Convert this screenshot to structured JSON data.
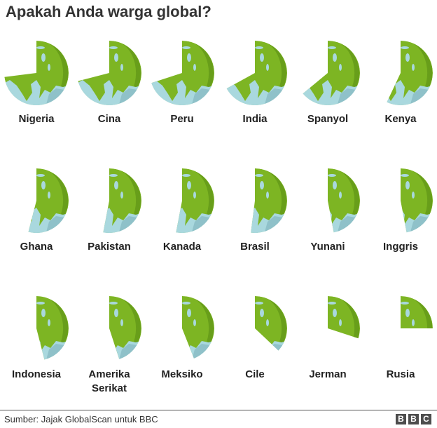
{
  "title": "Apakah Anda warga global?",
  "chart_data": {
    "type": "pie",
    "colors": {
      "land": "#7db523",
      "ocean": "#a9d8de",
      "land_shade": "#5f9417",
      "ocean_shade": "#8fc1c9"
    },
    "countries": [
      {
        "name": "Nigeria",
        "value": 73
      },
      {
        "name": "Cina",
        "value": 71
      },
      {
        "name": "Peru",
        "value": 70
      },
      {
        "name": "India",
        "value": 67
      },
      {
        "name": "Spanyol",
        "value": 64
      },
      {
        "name": "Kenya",
        "value": 57
      },
      {
        "name": "Ghana",
        "value": 54
      },
      {
        "name": "Pakistan",
        "value": 53
      },
      {
        "name": "Kanada",
        "value": 53
      },
      {
        "name": "Brasil",
        "value": 52
      },
      {
        "name": "Yunani",
        "value": 47
      },
      {
        "name": "Inggris",
        "value": 47
      },
      {
        "name": "Indonesia",
        "value": 46
      },
      {
        "name": "Amerika Serikat",
        "value": 45
      },
      {
        "name": "Meksiko",
        "value": 44
      },
      {
        "name": "Cile",
        "value": 37
      },
      {
        "name": "Jerman",
        "value": 30
      },
      {
        "name": "Rusia",
        "value": 25
      }
    ]
  },
  "source": "Sumber: Jajak GlobalScan untuk BBC",
  "logo": {
    "letters": [
      "B",
      "B",
      "C"
    ]
  }
}
